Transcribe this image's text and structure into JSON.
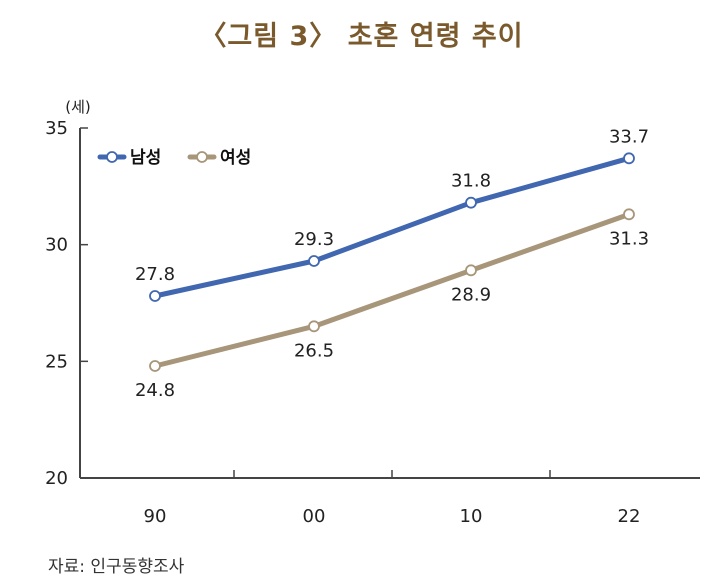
{
  "chart_data": {
    "type": "line",
    "title": "〈그림 3〉 초혼 연령 추이",
    "ylabel": "(세)",
    "xlabel": "",
    "categories": [
      "90",
      "00",
      "10",
      "22"
    ],
    "ylim": [
      20,
      35
    ],
    "yticks": [
      20,
      25,
      30,
      35
    ],
    "grid": false,
    "legend_position": "top-left",
    "series": [
      {
        "name": "남성",
        "values": [
          27.8,
          29.3,
          31.8,
          33.7
        ],
        "labels": [
          "27.8",
          "29.3",
          "31.8",
          "33.7"
        ],
        "color": "#4067b0",
        "label_side": "above"
      },
      {
        "name": "여성",
        "values": [
          24.8,
          26.5,
          28.9,
          31.3
        ],
        "labels": [
          "24.8",
          "26.5",
          "28.9",
          "31.3"
        ],
        "color": "#a8967a",
        "label_side": "below"
      }
    ]
  },
  "source": "자료: 인구동향조사"
}
